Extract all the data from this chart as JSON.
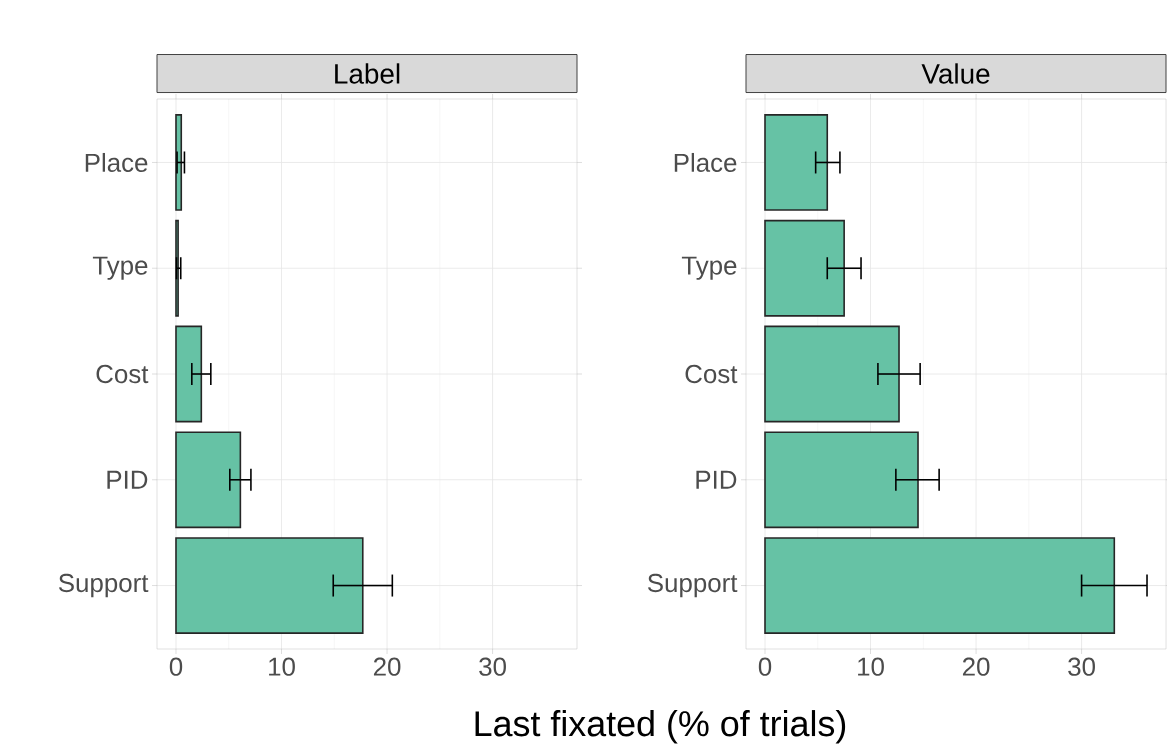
{
  "chart_data": [
    {
      "type": "bar",
      "orientation": "horizontal",
      "title": "Label",
      "xlabel": "Last fixated (% of trials)",
      "categories": [
        "Place",
        "Type",
        "Cost",
        "PID",
        "Support"
      ],
      "values": [
        0.5,
        0.2,
        2.4,
        6.1,
        17.7
      ],
      "errors": [
        [
          0.1,
          0.8
        ],
        [
          0.05,
          0.45
        ],
        [
          1.5,
          3.3
        ],
        [
          5.1,
          7.1
        ],
        [
          14.9,
          20.5
        ]
      ],
      "color": "#66c2a5",
      "xlim": [
        -1.8,
        38
      ],
      "xticks": [
        0,
        10,
        20,
        30
      ],
      "grid": true
    },
    {
      "type": "bar",
      "orientation": "horizontal",
      "title": "Value",
      "categories": [
        "Place",
        "Type",
        "Cost",
        "PID",
        "Support"
      ],
      "values": [
        5.9,
        7.5,
        12.7,
        14.5,
        33.1
      ],
      "errors": [
        [
          4.8,
          7.1
        ],
        [
          5.9,
          9.1
        ],
        [
          10.7,
          14.7
        ],
        [
          12.4,
          16.5
        ],
        [
          30.0,
          36.2
        ]
      ],
      "color": "#66c2a5",
      "xlim": [
        -1.8,
        38
      ],
      "xticks": [
        0,
        10,
        20,
        30
      ],
      "grid": true
    }
  ]
}
